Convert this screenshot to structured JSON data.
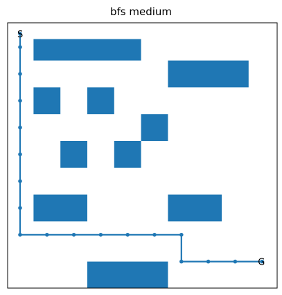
{
  "chart_data": {
    "type": "grid-path",
    "title": "bfs medium",
    "grid": {
      "cols": 9,
      "rows": 10,
      "grid_lines": false
    },
    "path_color": "#1f77b4",
    "obstacle_color": "#1f77b4",
    "start": {
      "label": "S",
      "x": 0,
      "y": 9
    },
    "goal": {
      "label": "G",
      "x": 9,
      "y": 0.5
    },
    "obstacles": [
      {
        "x0": 0.5,
        "x1": 4.5,
        "y0": 8.0,
        "y1": 8.8
      },
      {
        "x0": 5.5,
        "x1": 8.5,
        "y0": 7.0,
        "y1": 8.0
      },
      {
        "x0": 0.5,
        "x1": 1.5,
        "y0": 6.0,
        "y1": 7.0
      },
      {
        "x0": 2.5,
        "x1": 3.5,
        "y0": 6.0,
        "y1": 7.0
      },
      {
        "x0": 4.5,
        "x1": 5.5,
        "y0": 5.0,
        "y1": 6.0
      },
      {
        "x0": 1.5,
        "x1": 2.5,
        "y0": 4.0,
        "y1": 5.0
      },
      {
        "x0": 3.5,
        "x1": 4.5,
        "y0": 4.0,
        "y1": 5.0
      },
      {
        "x0": 0.5,
        "x1": 2.5,
        "y0": 2.0,
        "y1": 3.0
      },
      {
        "x0": 5.5,
        "x1": 7.5,
        "y0": 2.0,
        "y1": 3.0
      },
      {
        "x0": 2.5,
        "x1": 5.5,
        "y0": -0.5,
        "y1": 0.5
      }
    ],
    "path": [
      [
        0,
        9
      ],
      [
        0,
        8.5
      ],
      [
        0,
        7.5
      ],
      [
        0,
        6.5
      ],
      [
        0,
        5.5
      ],
      [
        0,
        4.5
      ],
      [
        0,
        3.5
      ],
      [
        0,
        2.5
      ],
      [
        0,
        1.5
      ],
      [
        1,
        1.5
      ],
      [
        2,
        1.5
      ],
      [
        3,
        1.5
      ],
      [
        4,
        1.5
      ],
      [
        5,
        1.5
      ],
      [
        6,
        1.5
      ],
      [
        6,
        0.5
      ],
      [
        7,
        0.5
      ],
      [
        8,
        0.5
      ],
      [
        9,
        0.5
      ]
    ]
  }
}
